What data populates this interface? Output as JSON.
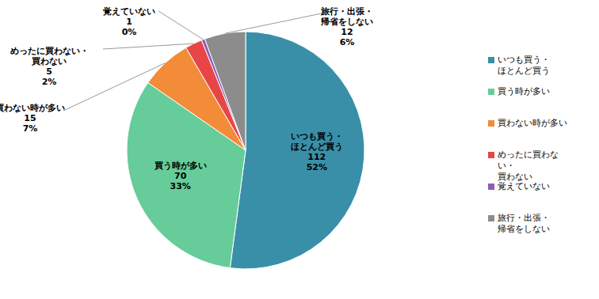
{
  "chart_data": {
    "type": "pie",
    "categories": [
      "いつも買う・ほとんど買う",
      "買う時が多い",
      "買わない時が多い",
      "めったに買わない・買わない",
      "覚えていない",
      "旅行・出張・帰省をしない"
    ],
    "values": [
      112,
      70,
      15,
      5,
      1,
      12
    ],
    "percent_labels": [
      "52%",
      "33%",
      "7%",
      "2%",
      "0%",
      "6%"
    ],
    "colors": [
      "#3A8FA8",
      "#66CC99",
      "#F28C38",
      "#E84646",
      "#8E5CB5",
      "#8C8C8C"
    ],
    "data_labels": true,
    "legend": "right"
  }
}
